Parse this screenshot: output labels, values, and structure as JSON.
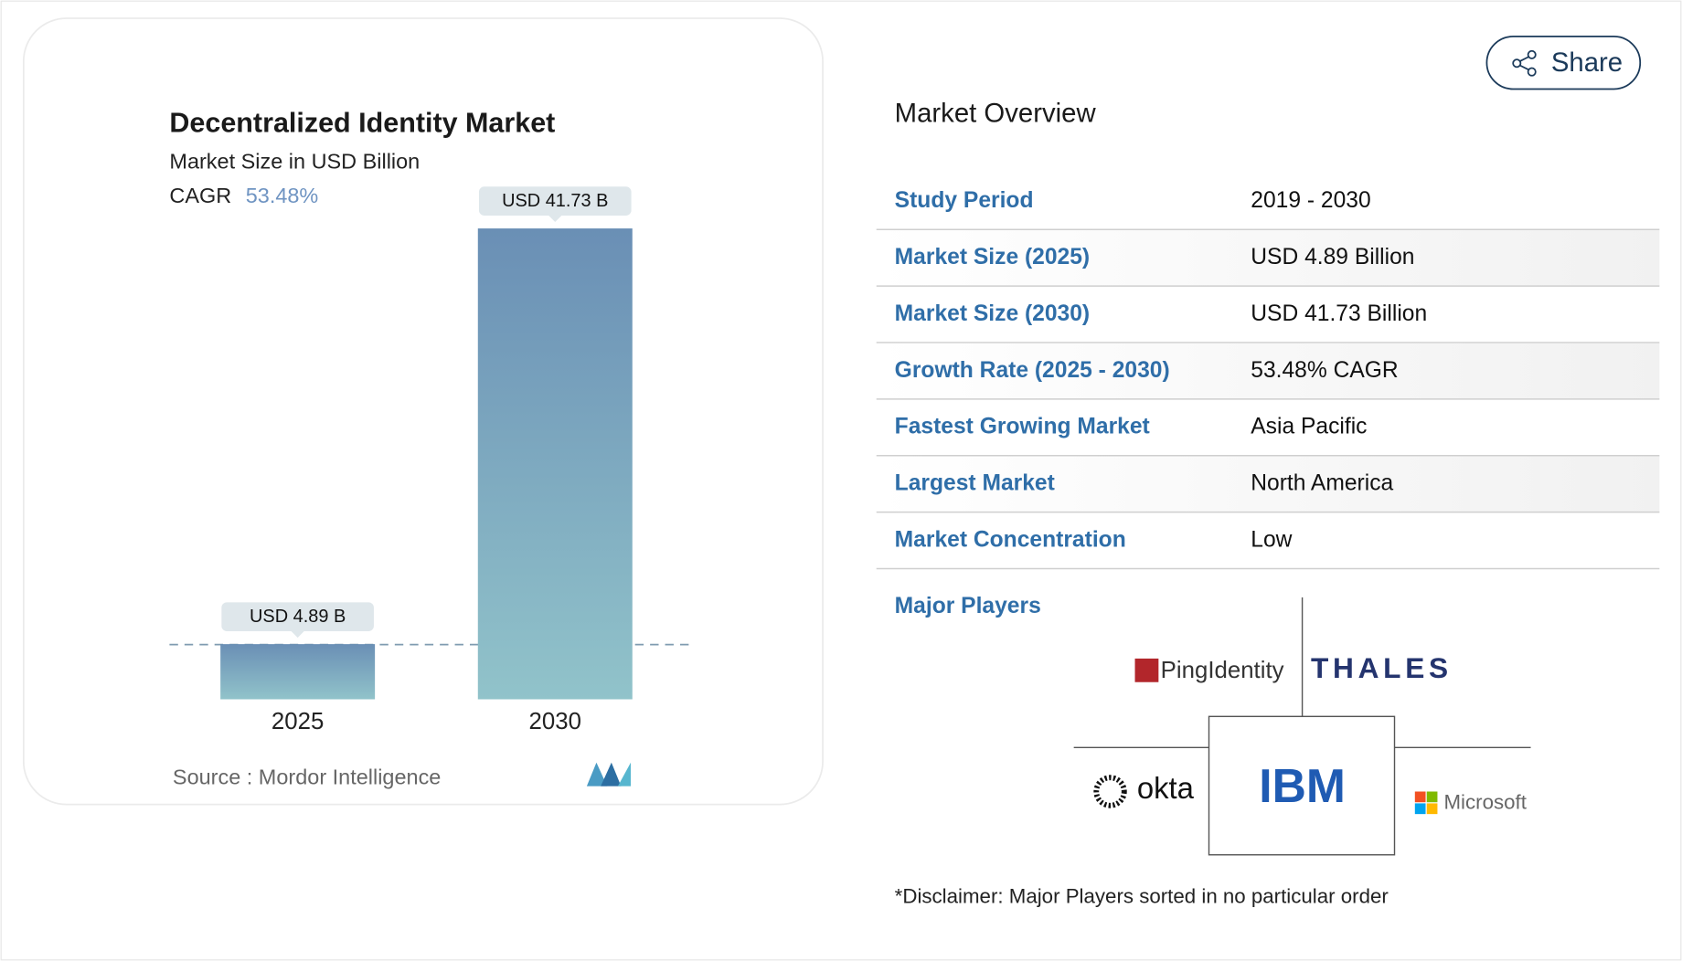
{
  "chart_data": {
    "type": "bar",
    "title": "Decentralized Identity Market",
    "subtitle": "Market Size in USD Billion",
    "cagr_label": "CAGR",
    "cagr": "53.48%",
    "categories": [
      "2025",
      "2030"
    ],
    "values": [
      4.89,
      41.73
    ],
    "value_labels": [
      "USD 4.89 B",
      "USD 41.73 B"
    ],
    "source": "Source :  Mordor Intelligence"
  },
  "share": "Share",
  "overview": {
    "title": "Market Overview",
    "rows": [
      [
        "Study Period",
        "2019 - 2030"
      ],
      [
        "Market Size (2025)",
        "USD 4.89 Billion"
      ],
      [
        "Market Size (2030)",
        "USD 41.73 Billion"
      ],
      [
        "Growth Rate (2025 - 2030)",
        "53.48% CAGR"
      ],
      [
        "Fastest Growing Market",
        "Asia Pacific"
      ],
      [
        "Largest Market",
        "North America"
      ],
      [
        "Market Concentration",
        "Low"
      ]
    ]
  },
  "major_players": {
    "title": "Major Players",
    "players": [
      "PingIdentity",
      "THALES",
      "okta",
      "IBM",
      "Microsoft"
    ]
  },
  "disclaimer": "*Disclaimer: Major Players sorted in no particular order"
}
